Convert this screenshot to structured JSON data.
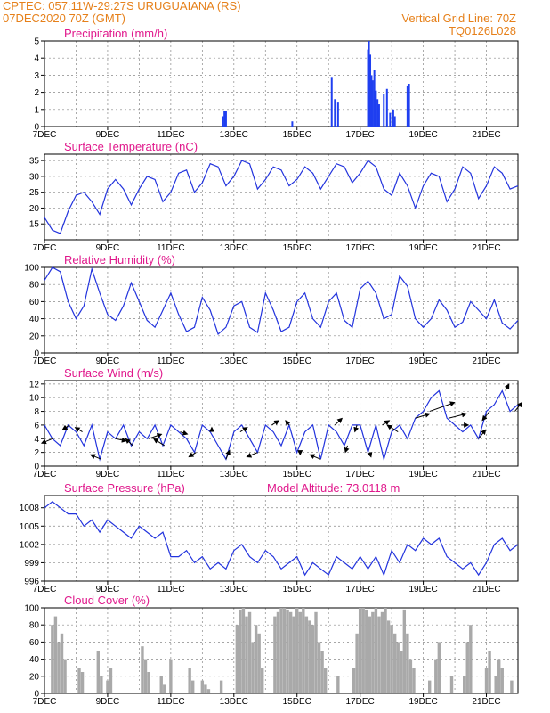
{
  "header": {
    "station": "CPTEC:   057:11W-29:27S   URUGUAIANA (RS)",
    "run": "07DEC2020 70Z (GMT)",
    "grid_line": "Vertical Grid Line: 70Z",
    "model": "TQ0126L028"
  },
  "colors": {
    "series": "#2233dd",
    "bars": "#1f3ff0",
    "cloud": "#a9a9a9",
    "arrow": "#000000",
    "grid": "#888888"
  },
  "chart_data": [
    {
      "id": "precip",
      "type": "bar",
      "title": "Precipitation (mm/h)",
      "ylim": [
        0,
        5
      ],
      "yticks": [
        0,
        1,
        2,
        3,
        4,
        5
      ],
      "xlim": [
        7,
        22
      ],
      "xticks": [
        7,
        9,
        11,
        13,
        15,
        17,
        19,
        21
      ],
      "xticklabels": [
        "7DEC",
        "9DEC",
        "11DEC",
        "13DEC",
        "15DEC",
        "17DEC",
        "19DEC",
        "21DEC"
      ],
      "x": [
        12.65,
        12.7,
        12.75,
        14.85,
        16.1,
        16.2,
        16.3,
        17.25,
        17.28,
        17.32,
        17.36,
        17.4,
        17.45,
        17.5,
        17.55,
        17.6,
        17.75,
        17.85,
        17.95,
        18.05,
        18.1,
        18.5,
        18.55
      ],
      "values": [
        0.6,
        0.9,
        0.9,
        0.3,
        2.9,
        1.6,
        1.4,
        4.5,
        5.0,
        4.2,
        3.0,
        2.7,
        3.3,
        2.1,
        1.6,
        1.3,
        1.9,
        2.2,
        0.8,
        1.0,
        0.6,
        2.4,
        2.5
      ]
    },
    {
      "id": "temp",
      "type": "line",
      "title": "Surface Temperature (nC)",
      "ylim": [
        10,
        37
      ],
      "yticks": [
        15,
        20,
        25,
        30,
        35
      ],
      "xlim": [
        7,
        22
      ],
      "xticks": [
        7,
        9,
        11,
        13,
        15,
        17,
        19,
        21
      ],
      "xticklabels": [
        "7DEC",
        "9DEC",
        "11DEC",
        "13DEC",
        "15DEC",
        "17DEC",
        "19DEC",
        "21DEC"
      ],
      "x": [
        7.0,
        7.25,
        7.5,
        7.75,
        8.0,
        8.25,
        8.5,
        8.75,
        9.0,
        9.25,
        9.5,
        9.75,
        10.0,
        10.25,
        10.5,
        10.75,
        11.0,
        11.25,
        11.5,
        11.75,
        12.0,
        12.25,
        12.5,
        12.75,
        13.0,
        13.25,
        13.5,
        13.75,
        14.0,
        14.25,
        14.5,
        14.75,
        15.0,
        15.25,
        15.5,
        15.75,
        16.0,
        16.25,
        16.5,
        16.75,
        17.0,
        17.25,
        17.5,
        17.75,
        18.0,
        18.25,
        18.5,
        18.75,
        19.0,
        19.25,
        19.5,
        19.75,
        20.0,
        20.25,
        20.5,
        20.75,
        21.0,
        21.25,
        21.5,
        21.75,
        22.0
      ],
      "values": [
        17,
        13,
        12,
        19,
        24,
        25,
        22,
        18,
        26,
        29,
        26,
        21,
        26,
        30,
        29,
        22,
        25,
        31,
        32,
        25,
        28,
        34,
        33,
        27,
        30,
        35,
        34,
        26,
        29,
        33,
        32,
        27,
        29,
        33,
        31,
        26,
        30,
        34,
        33,
        28,
        31,
        35,
        33,
        26,
        24,
        31,
        27,
        20,
        27,
        31,
        30,
        22,
        26,
        33,
        31,
        23,
        27,
        33,
        31,
        26,
        27
      ]
    },
    {
      "id": "rh",
      "type": "line",
      "title": "Relative Humidity (%)",
      "ylim": [
        0,
        100
      ],
      "yticks": [
        0,
        20,
        40,
        60,
        80,
        100
      ],
      "xlim": [
        7,
        22
      ],
      "xticks": [
        7,
        9,
        11,
        13,
        15,
        17,
        19,
        21
      ],
      "xticklabels": [
        "7DEC",
        "9DEC",
        "11DEC",
        "13DEC",
        "15DEC",
        "17DEC",
        "19DEC",
        "21DEC"
      ],
      "x": [
        7.0,
        7.25,
        7.5,
        7.75,
        8.0,
        8.25,
        8.5,
        8.75,
        9.0,
        9.25,
        9.5,
        9.75,
        10.0,
        10.25,
        10.5,
        10.75,
        11.0,
        11.25,
        11.5,
        11.75,
        12.0,
        12.25,
        12.5,
        12.75,
        13.0,
        13.25,
        13.5,
        13.75,
        14.0,
        14.25,
        14.5,
        14.75,
        15.0,
        15.25,
        15.5,
        15.75,
        16.0,
        16.25,
        16.5,
        16.75,
        17.0,
        17.25,
        17.5,
        17.75,
        18.0,
        18.25,
        18.5,
        18.75,
        19.0,
        19.25,
        19.5,
        19.75,
        20.0,
        20.25,
        20.5,
        20.75,
        21.0,
        21.25,
        21.5,
        21.75,
        22.0
      ],
      "values": [
        85,
        100,
        95,
        60,
        40,
        55,
        98,
        70,
        45,
        38,
        55,
        82,
        60,
        38,
        30,
        50,
        70,
        45,
        25,
        30,
        65,
        50,
        22,
        30,
        55,
        60,
        30,
        24,
        70,
        50,
        25,
        30,
        60,
        70,
        40,
        30,
        60,
        70,
        38,
        30,
        75,
        84,
        70,
        40,
        45,
        90,
        78,
        40,
        30,
        40,
        62,
        50,
        30,
        36,
        60,
        50,
        40,
        62,
        35,
        28,
        38
      ]
    },
    {
      "id": "wind",
      "type": "line",
      "title": "Surface Wind (m/s)",
      "ylim": [
        0,
        12.5
      ],
      "yticks": [
        0,
        2,
        4,
        6,
        8,
        10,
        12
      ],
      "xlim": [
        7,
        22
      ],
      "xticks": [
        7,
        9,
        11,
        13,
        15,
        17,
        19,
        21
      ],
      "xticklabels": [
        "7DEC",
        "9DEC",
        "11DEC",
        "13DEC",
        "15DEC",
        "17DEC",
        "19DEC",
        "21DEC"
      ],
      "x": [
        7.0,
        7.25,
        7.5,
        7.75,
        8.0,
        8.25,
        8.5,
        8.75,
        9.0,
        9.25,
        9.5,
        9.75,
        10.0,
        10.25,
        10.5,
        10.75,
        11.0,
        11.25,
        11.5,
        11.75,
        12.0,
        12.25,
        12.5,
        12.75,
        13.0,
        13.25,
        13.5,
        13.75,
        14.0,
        14.25,
        14.5,
        14.75,
        15.0,
        15.25,
        15.5,
        15.75,
        16.0,
        16.25,
        16.5,
        16.75,
        17.0,
        17.25,
        17.5,
        17.75,
        18.0,
        18.25,
        18.5,
        18.75,
        19.0,
        19.25,
        19.5,
        19.75,
        20.0,
        20.25,
        20.5,
        20.75,
        21.0,
        21.25,
        21.5,
        21.75,
        22.0
      ],
      "values": [
        6,
        4,
        3,
        6,
        5,
        3,
        6,
        1,
        5,
        4,
        6,
        3,
        5,
        4,
        6,
        3,
        6,
        5,
        4,
        2,
        6,
        5,
        3,
        1,
        5,
        6,
        4,
        2,
        6,
        5,
        3,
        6,
        2,
        5,
        6,
        1,
        6,
        5,
        3,
        6,
        6,
        2,
        6,
        1,
        5,
        6,
        4,
        7,
        8,
        10,
        11,
        7,
        6,
        5,
        6,
        4,
        8,
        9,
        11,
        8,
        9
      ]
    },
    {
      "id": "wind_vectors",
      "type": "scatter",
      "x": [
        7.25,
        7.8,
        8.2,
        8.8,
        9.25,
        9.8,
        10.3,
        10.8,
        11.3,
        11.8,
        12.3,
        12.75,
        13.2,
        13.75,
        14.2,
        14.75,
        15.1,
        15.75,
        16.2,
        16.6,
        16.9,
        17.3,
        17.7,
        18.2,
        18.75,
        19.2,
        19.8,
        20.2,
        20.75,
        21.1,
        21.6,
        21.9
      ],
      "u": [
        -1.5,
        -1,
        -1,
        -1.5,
        1.5,
        -1,
        1.8,
        -1.5,
        1,
        -1,
        0,
        0.5,
        1,
        -1.5,
        1,
        -0.5,
        0,
        -1.5,
        1,
        -0.3,
        -0.3,
        0.2,
        1,
        -1.5,
        2,
        3.5,
        2.5,
        1,
        1,
        -1,
        0.5,
        1
      ],
      "v": [
        -1,
        -1,
        1,
        1,
        -0.5,
        1.5,
        1,
        1.5,
        -0.5,
        -1,
        1,
        2,
        1,
        -1,
        1,
        1,
        -0.5,
        1,
        1.5,
        -1.5,
        -1.5,
        -1,
        1,
        1.5,
        1,
        2,
        1,
        0,
        2,
        -2,
        1.5,
        2
      ]
    },
    {
      "id": "pressure",
      "type": "line",
      "title": "Surface Pressure (hPa)",
      "annotation": "Model Altitude: 73.0118  m",
      "ylim": [
        996,
        1010
      ],
      "yticks": [
        996,
        999,
        1002,
        1005,
        1008
      ],
      "xlim": [
        7,
        22
      ],
      "xticks": [
        7,
        9,
        11,
        13,
        15,
        17,
        19,
        21
      ],
      "xticklabels": [
        "7DEC",
        "9DEC",
        "11DEC",
        "13DEC",
        "15DEC",
        "17DEC",
        "19DEC",
        "21DEC"
      ],
      "x": [
        7.0,
        7.25,
        7.5,
        7.75,
        8.0,
        8.25,
        8.5,
        8.75,
        9.0,
        9.25,
        9.5,
        9.75,
        10.0,
        10.25,
        10.5,
        10.75,
        11.0,
        11.25,
        11.5,
        11.75,
        12.0,
        12.25,
        12.5,
        12.75,
        13.0,
        13.25,
        13.5,
        13.75,
        14.0,
        14.25,
        14.5,
        14.75,
        15.0,
        15.25,
        15.5,
        15.75,
        16.0,
        16.25,
        16.5,
        16.75,
        17.0,
        17.25,
        17.5,
        17.75,
        18.0,
        18.25,
        18.5,
        18.75,
        19.0,
        19.25,
        19.5,
        19.75,
        20.0,
        20.25,
        20.5,
        20.75,
        21.0,
        21.25,
        21.5,
        21.75,
        22.0
      ],
      "values": [
        1008,
        1009,
        1008,
        1007,
        1007,
        1005,
        1006,
        1004,
        1006,
        1005,
        1004,
        1003,
        1005,
        1004,
        1003,
        1004,
        1000,
        1000,
        1001,
        999,
        1000,
        998,
        999,
        998,
        1001,
        1002,
        1000,
        999,
        1001,
        1000,
        998,
        999,
        1000,
        997,
        999,
        998,
        997,
        1000,
        999,
        998,
        1000,
        998,
        1000,
        997,
        1001,
        999,
        1002,
        1001,
        1003,
        1002,
        1003,
        1000,
        999,
        998,
        999,
        997,
        999,
        1002,
        1003,
        1001,
        1002
      ]
    },
    {
      "id": "cloud",
      "type": "bar",
      "title": "Cloud Cover (%)",
      "ylim": [
        0,
        100
      ],
      "yticks": [
        0,
        20,
        40,
        60,
        80,
        100
      ],
      "xlim": [
        7,
        22
      ],
      "xticks": [
        7,
        9,
        11,
        13,
        15,
        17,
        19,
        21
      ],
      "xticklabels": [
        "7DEC",
        "9DEC",
        "11DEC",
        "13DEC",
        "15DEC",
        "17DEC",
        "19DEC",
        "21DEC"
      ],
      "x": [
        7.25,
        7.35,
        7.45,
        7.55,
        7.65,
        8.1,
        8.2,
        8.7,
        8.8,
        9.0,
        9.1,
        10.1,
        10.2,
        10.3,
        10.7,
        10.8,
        11.0,
        11.6,
        11.7,
        12.0,
        12.1,
        12.2,
        12.6,
        13.1,
        13.2,
        13.3,
        13.4,
        13.5,
        13.6,
        13.7,
        13.8,
        13.9,
        14.3,
        14.4,
        14.5,
        14.6,
        14.7,
        14.8,
        14.9,
        15.0,
        15.1,
        15.2,
        15.3,
        15.4,
        15.5,
        15.6,
        15.7,
        15.8,
        15.9,
        16.3,
        16.8,
        16.9,
        17.0,
        17.1,
        17.2,
        17.3,
        17.4,
        17.5,
        17.6,
        17.7,
        17.8,
        17.9,
        18.0,
        18.1,
        18.2,
        18.3,
        18.4,
        18.5,
        18.6,
        18.7,
        19.2,
        19.4,
        19.5,
        19.9,
        20.3,
        20.4,
        20.5,
        21.0,
        21.1,
        21.3,
        21.4,
        21.5,
        21.8
      ],
      "values": [
        80,
        90,
        60,
        70,
        40,
        30,
        25,
        50,
        20,
        15,
        30,
        55,
        40,
        25,
        20,
        10,
        40,
        30,
        15,
        15,
        10,
        5,
        15,
        80,
        98,
        100,
        90,
        95,
        60,
        80,
        70,
        30,
        90,
        95,
        100,
        100,
        98,
        95,
        90,
        100,
        95,
        100,
        90,
        85,
        80,
        95,
        60,
        50,
        30,
        20,
        30,
        70,
        100,
        100,
        98,
        90,
        95,
        100,
        90,
        95,
        100,
        85,
        80,
        70,
        60,
        50,
        98,
        70,
        40,
        30,
        15,
        40,
        60,
        20,
        20,
        60,
        80,
        30,
        50,
        20,
        40,
        30,
        15
      ]
    }
  ]
}
